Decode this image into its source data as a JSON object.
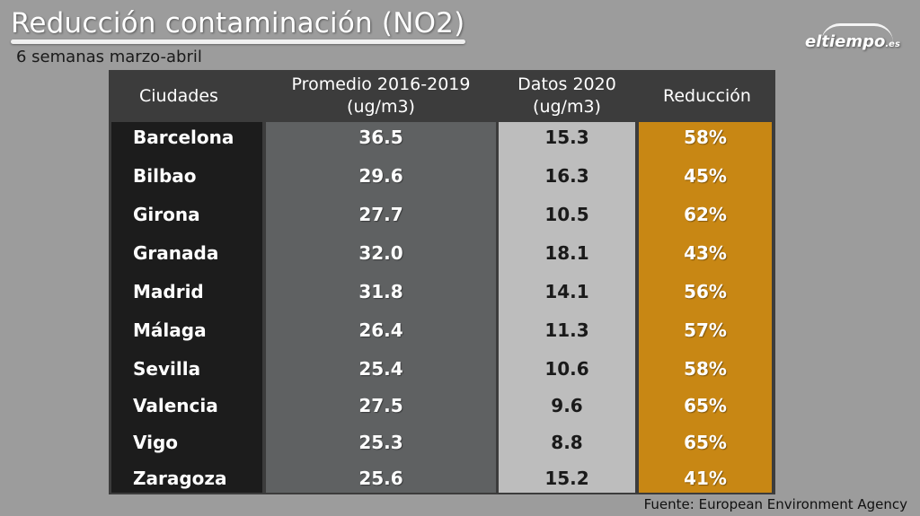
{
  "title": "Reducción contaminación (NO2)",
  "subtitle": "6 semanas marzo-abril",
  "logo": {
    "name": "eltiempo",
    "suffix": ".es"
  },
  "table": {
    "headers": {
      "city": "Ciudades",
      "avg_line1": "Promedio 2016-2019",
      "avg_line2": "(ug/m3)",
      "data2020_line1": "Datos 2020",
      "data2020_line2": "(ug/m3)",
      "reduction": "Reducción"
    },
    "rows": [
      {
        "city": "Barcelona",
        "avg": "36.5",
        "data2020": "15.3",
        "reduction": "58%"
      },
      {
        "city": "Bilbao",
        "avg": "29.6",
        "data2020": "16.3",
        "reduction": "45%"
      },
      {
        "city": "Girona",
        "avg": "27.7",
        "data2020": "10.5",
        "reduction": "62%"
      },
      {
        "city": "Granada",
        "avg": "32.0",
        "data2020": "18.1",
        "reduction": "43%"
      },
      {
        "city": "Madrid",
        "avg": "31.8",
        "data2020": "14.1",
        "reduction": "56%"
      },
      {
        "city": "Málaga",
        "avg": "26.4",
        "data2020": "11.3",
        "reduction": "57%"
      },
      {
        "city": "Sevilla",
        "avg": "25.4",
        "data2020": "10.6",
        "reduction": "58%"
      },
      {
        "city": "Valencia",
        "avg": "27.5",
        "data2020": "9.6",
        "reduction": "65%"
      },
      {
        "city": "Vigo",
        "avg": "25.3",
        "data2020": "8.8",
        "reduction": "65%"
      },
      {
        "city": "Zaragoza",
        "avg": "25.6",
        "data2020": "15.2",
        "reduction": "41%"
      }
    ]
  },
  "source": "Fuente: European Environment Agency",
  "colors": {
    "background": "#9c9c9c",
    "city_column": "#1c1c1c",
    "average_column": "#5f6162",
    "data2020_column": "#bdbdbd",
    "reduction_column": "#c88714"
  }
}
